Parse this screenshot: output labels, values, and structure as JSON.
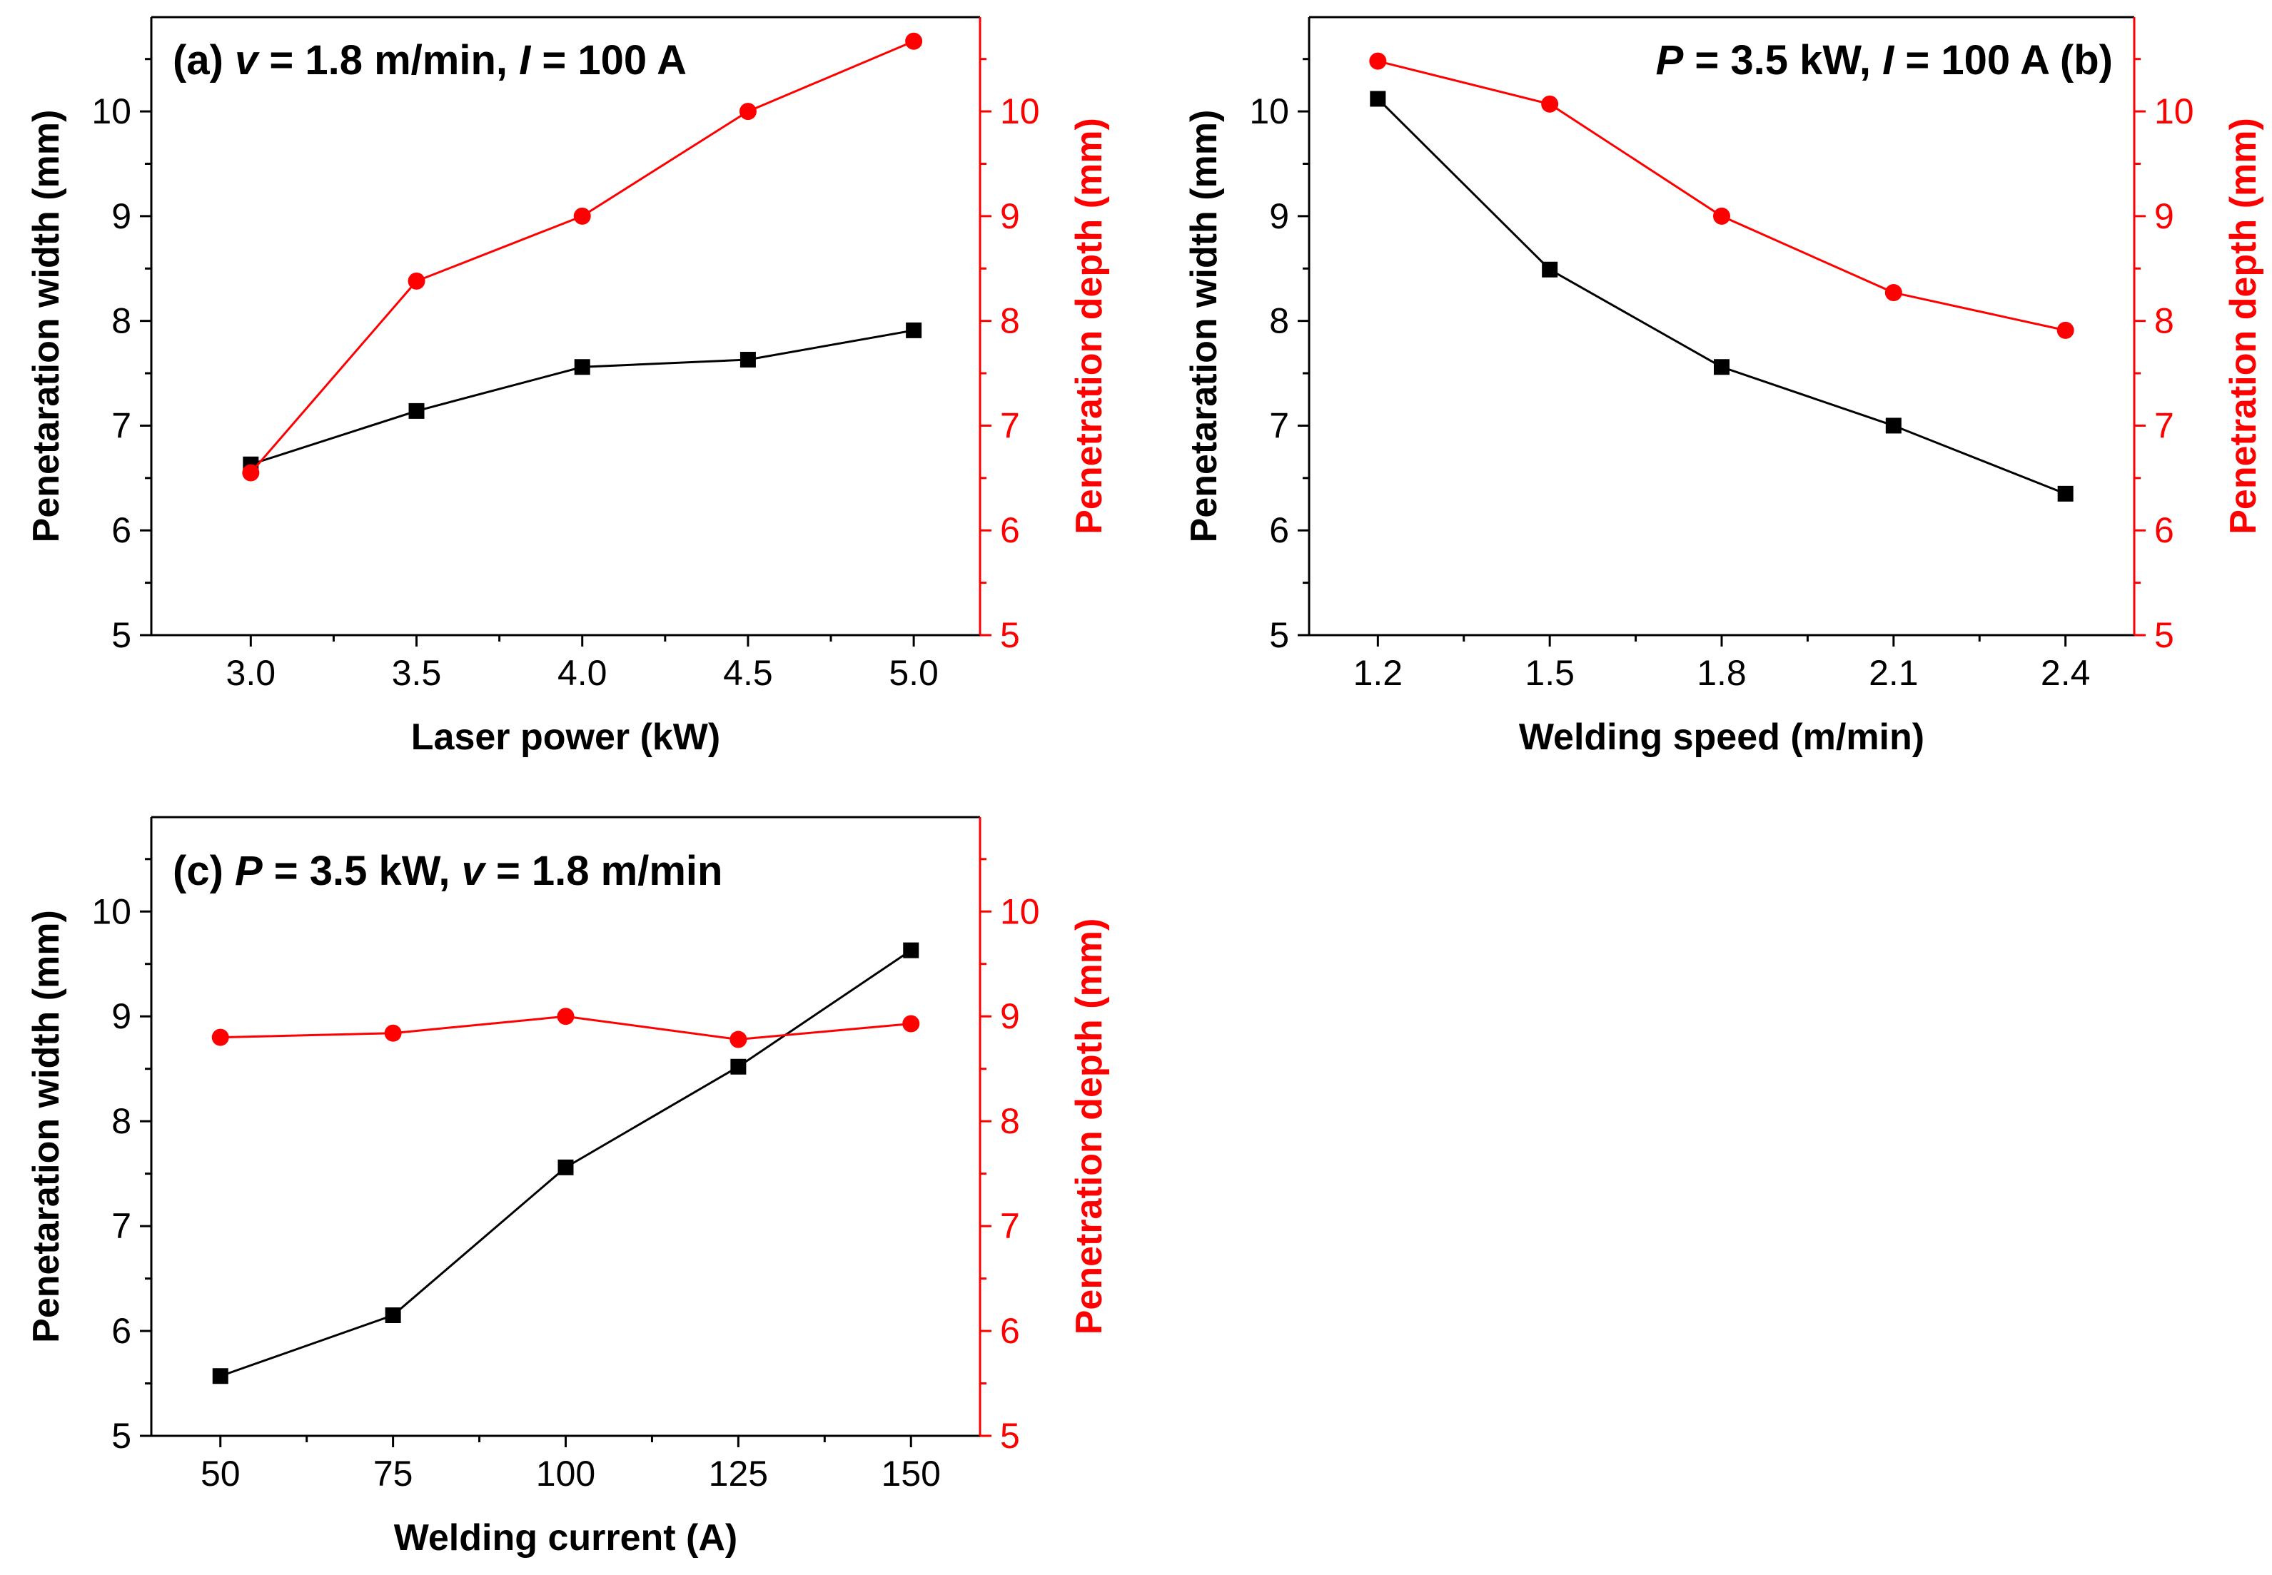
{
  "colors": {
    "width_series": "#000000",
    "depth_series": "#ff0000",
    "axes": "#000000"
  },
  "chart_data": [
    {
      "id": "a",
      "type": "line",
      "annotation": {
        "prefix": "(a) ",
        "v1": "v",
        "mid": " = 1.8 m/min, ",
        "v2": "I",
        "suffix": " = 100 A"
      },
      "xlabel": "Laser power (kW)",
      "ylabel_left": "Penetaration width (mm)",
      "ylabel_right": "Penetration depth (mm)",
      "xlim": [
        2.7,
        5.2
      ],
      "ylim_left": [
        5,
        10.9
      ],
      "ylim_right": [
        5,
        10.9
      ],
      "x": [
        3.0,
        3.5,
        4.0,
        4.5,
        5.0
      ],
      "x_tick_labels": [
        "3.0",
        "3.5",
        "4.0",
        "4.5",
        "5.0"
      ],
      "y_ticks": [
        "5",
        "6",
        "7",
        "8",
        "9",
        "10"
      ],
      "series": [
        {
          "name": "Penetaration width",
          "axis": "left",
          "marker": "square",
          "values": [
            6.63,
            7.14,
            7.56,
            7.63,
            7.91
          ]
        },
        {
          "name": "Penetration depth",
          "axis": "right",
          "marker": "circle",
          "values": [
            6.55,
            8.38,
            9.0,
            10.0,
            10.67
          ]
        }
      ]
    },
    {
      "id": "b",
      "type": "line",
      "annotation": {
        "prefix": "",
        "v1": "P",
        "mid": " = 3.5 kW, ",
        "v2": "I",
        "suffix": " = 100 A (b)"
      },
      "xlabel": "Welding speed (m/min)",
      "ylabel_left": "Penetaration width (mm)",
      "ylabel_right": "Penetration depth (mm)",
      "xlim": [
        1.08,
        2.52
      ],
      "ylim_left": [
        5,
        10.9
      ],
      "ylim_right": [
        5,
        10.9
      ],
      "x": [
        1.2,
        1.5,
        1.8,
        2.1,
        2.4
      ],
      "x_tick_labels": [
        "1.2",
        "1.5",
        "1.8",
        "2.1",
        "2.4"
      ],
      "y_ticks": [
        "5",
        "6",
        "7",
        "8",
        "9",
        "10"
      ],
      "series": [
        {
          "name": "Penetaration width",
          "axis": "left",
          "marker": "square",
          "values": [
            10.12,
            8.49,
            7.56,
            7.0,
            6.35
          ]
        },
        {
          "name": "Penetration depth",
          "axis": "right",
          "marker": "circle",
          "values": [
            10.48,
            10.07,
            9.0,
            8.27,
            7.91
          ]
        }
      ]
    },
    {
      "id": "c",
      "type": "line",
      "annotation": {
        "prefix": "(c)  ",
        "v1": "P",
        "mid": " = 3.5 kW, ",
        "v2": "v",
        "suffix": " = 1.8 m/min"
      },
      "xlabel": "Welding current (A)",
      "ylabel_left": "Penetaration width (mm)",
      "ylabel_right": "Penetration depth (mm)",
      "xlim": [
        40,
        160
      ],
      "ylim_left": [
        5,
        10.9
      ],
      "ylim_right": [
        5,
        10.9
      ],
      "x": [
        50,
        75,
        100,
        125,
        150
      ],
      "x_tick_labels": [
        "50",
        "75",
        "100",
        "125",
        "150"
      ],
      "y_ticks": [
        "5",
        "6",
        "7",
        "8",
        "9",
        "10"
      ],
      "series": [
        {
          "name": "Penetaration width",
          "axis": "left",
          "marker": "square",
          "values": [
            5.57,
            6.15,
            7.56,
            8.52,
            9.63
          ]
        },
        {
          "name": "Penetration depth",
          "axis": "right",
          "marker": "circle",
          "values": [
            8.8,
            8.84,
            9.0,
            8.78,
            8.93
          ]
        }
      ]
    }
  ]
}
